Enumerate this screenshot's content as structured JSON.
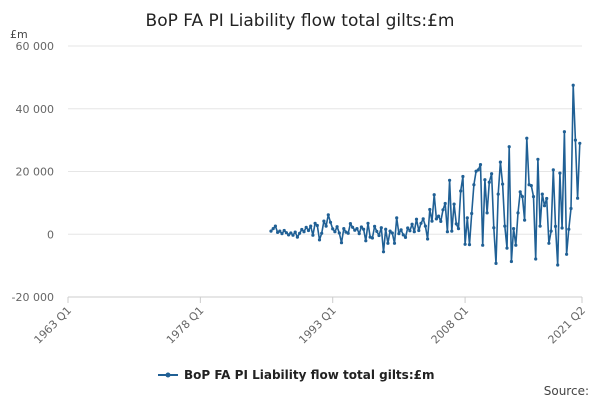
{
  "chart_data": {
    "type": "line",
    "title": "BoP FA PI Liability flow total gilts:£m",
    "unit_label": "£m",
    "xlabel": "",
    "ylabel": "£m",
    "ylim": [
      -20000,
      60000
    ],
    "yticks": [
      -20000,
      0,
      20000,
      40000,
      60000
    ],
    "ytick_labels": [
      "-20 000",
      "0",
      "20 000",
      "40 000",
      "60 000"
    ],
    "xlim_quarters": [
      "1963 Q1",
      "2021 Q2"
    ],
    "xticks": [
      "1963 Q1",
      "1978 Q1",
      "1993 Q1",
      "2008 Q1",
      "2021 Q2"
    ],
    "grid": true,
    "legend_position": "bottom-center",
    "series": [
      {
        "name": "BoP FA PI Liability flow total gilts:£m",
        "color": "#206095",
        "x_start": "1986 Q1",
        "frequency": "quarterly",
        "values": [
          1000,
          1800,
          2600,
          600,
          1000,
          200,
          1200,
          500,
          -200,
          400,
          -300,
          700,
          -900,
          300,
          1500,
          800,
          2200,
          1200,
          2600,
          -300,
          3500,
          2800,
          -1800,
          300,
          4200,
          2600,
          6200,
          3800,
          1700,
          800,
          2400,
          400,
          -2700,
          1800,
          700,
          300,
          3400,
          2200,
          1300,
          1800,
          200,
          2300,
          1600,
          -2100,
          3500,
          -900,
          -1200,
          2500,
          900,
          -400,
          2100,
          -5600,
          1600,
          -2900,
          1000,
          400,
          -2900,
          5200,
          200,
          1400,
          -200,
          -1000,
          2000,
          1100,
          3200,
          800,
          4800,
          1200,
          3500,
          4900,
          2600,
          -1500,
          7900,
          4200,
          12600,
          4900,
          5800,
          4100,
          7800,
          9800,
          800,
          17200,
          1000,
          9600,
          3300,
          1800,
          13800,
          18400,
          -3200,
          5200,
          -3300,
          6600,
          15800,
          20100,
          20500,
          22200,
          -3500,
          17400,
          6800,
          16600,
          19300,
          2100,
          -9300,
          12800,
          23000,
          16000,
          2600,
          -4400,
          27900,
          -8700,
          1800,
          -3500,
          6800,
          13500,
          12000,
          4500,
          30600,
          15800,
          15500,
          12000,
          -7900,
          23900,
          2600,
          12800,
          9100,
          11400,
          -2900,
          1000,
          20500,
          2500,
          -9800,
          19500,
          2000,
          32700,
          -6400,
          1600,
          8200,
          47500,
          30000,
          11500,
          29000
        ]
      }
    ]
  },
  "legend": {
    "label": "BoP FA PI Liability flow total gilts:£m"
  },
  "footer": {
    "source": "Source:"
  }
}
